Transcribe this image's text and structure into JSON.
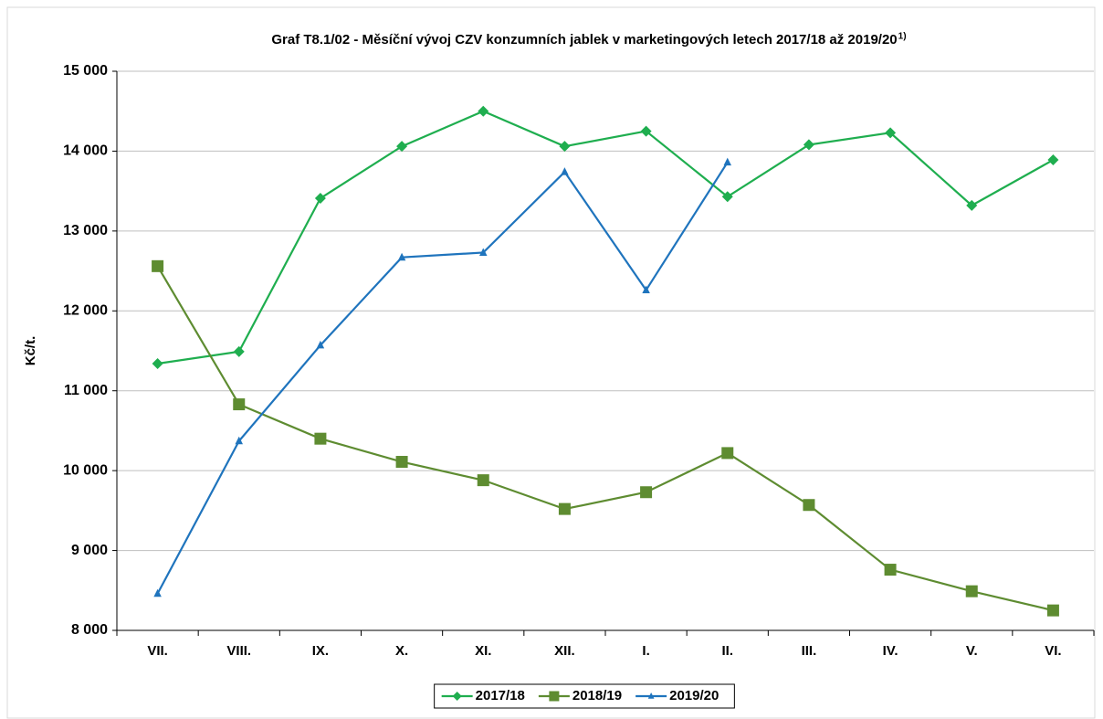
{
  "chart_data": {
    "type": "line",
    "title": "Graf T8.1/02 - Měsíční vývoj CZV konzumních jablek v marketingových letech 2017/18 až 2019/20",
    "title_note": "1)",
    "y_label": "Kč/t.",
    "categories": [
      "VII.",
      "VIII.",
      "IX.",
      "X.",
      "XI.",
      "XII.",
      "I.",
      "II.",
      "III.",
      "IV.",
      "V.",
      "VI."
    ],
    "series": [
      {
        "name": "2017/18",
        "color": "#1fae4f",
        "marker": "diamond",
        "values": [
          11340,
          11490,
          13410,
          14060,
          14500,
          14060,
          14250,
          13430,
          14080,
          14230,
          13320,
          13890
        ]
      },
      {
        "name": "2018/19",
        "color": "#5e8c31",
        "marker": "square",
        "values": [
          12560,
          10830,
          10400,
          10110,
          9880,
          9520,
          9730,
          10220,
          9570,
          8760,
          8490,
          8250
        ]
      },
      {
        "name": "2019/20",
        "color": "#1f74bd",
        "marker": "triangle",
        "values": [
          8460,
          10370,
          11570,
          12670,
          12730,
          13740,
          12260,
          13860,
          null,
          null,
          null,
          null
        ]
      }
    ],
    "ylim": [
      8000,
      15000
    ],
    "yticks": [
      {
        "value": 8000,
        "label": "8 000"
      },
      {
        "value": 9000,
        "label": "9 000"
      },
      {
        "value": 10000,
        "label": "10 000"
      },
      {
        "value": 11000,
        "label": "11 000"
      },
      {
        "value": 12000,
        "label": "12 000"
      },
      {
        "value": 13000,
        "label": "13 000"
      },
      {
        "value": 14000,
        "label": "14 000"
      },
      {
        "value": 15000,
        "label": "15 000"
      }
    ],
    "grid": true,
    "legend": "bottom"
  }
}
